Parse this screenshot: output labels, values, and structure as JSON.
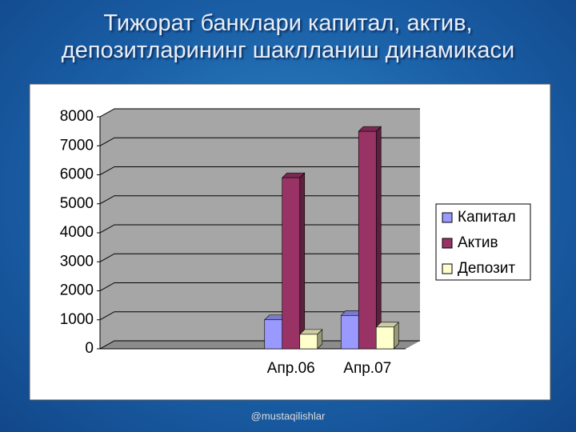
{
  "chart_data": {
    "type": "bar",
    "title": "Тижорат банклари капитал, актив, депозитларининг шаклланиш динамикаси",
    "categories": [
      null,
      null,
      "Апр.06",
      "Апр.07"
    ],
    "series": [
      {
        "name": "Капитал",
        "color": "#9999ff",
        "values": [
          null,
          null,
          1000,
          1150
        ]
      },
      {
        "name": "Актив",
        "color": "#993366",
        "values": [
          null,
          null,
          5900,
          7500
        ]
      },
      {
        "name": "Депозит",
        "color": "#ffffcc",
        "values": [
          null,
          null,
          500,
          750
        ]
      }
    ],
    "ylim": [
      0,
      8000
    ],
    "yticks": [
      0,
      1000,
      2000,
      3000,
      4000,
      5000,
      6000,
      7000,
      8000
    ],
    "grid": true,
    "legend": "right",
    "footer": "@mustaqilishlar"
  }
}
